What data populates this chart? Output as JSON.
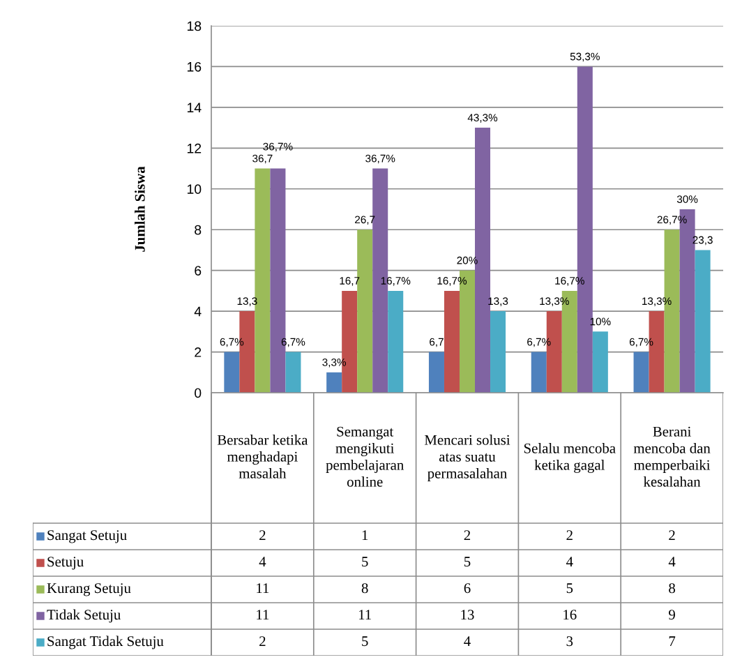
{
  "chart_data": {
    "type": "bar",
    "ylabel": "Jumlah Siswa",
    "categories": [
      "Bersabar ketika menghadapi masalah",
      "Semangat mengikuti pembelajaran online",
      "Mencari solusi atas suatu permasalahan",
      "Selalu mencoba ketika gagal",
      "Berani mencoba dan memperbaiki kesalahan"
    ],
    "series": [
      {
        "name": "Sangat Setuju",
        "color": "#4f81bd",
        "values": [
          2,
          1,
          2,
          2,
          2
        ]
      },
      {
        "name": "Setuju",
        "color": "#c0504d",
        "values": [
          4,
          5,
          5,
          4,
          4
        ]
      },
      {
        "name": "Kurang Setuju",
        "color": "#9bbb59",
        "values": [
          11,
          8,
          6,
          5,
          8
        ]
      },
      {
        "name": "Tidak Setuju",
        "color": "#8064a2",
        "values": [
          11,
          11,
          13,
          16,
          9
        ]
      },
      {
        "name": "Sangat Tidak Setuju",
        "color": "#4bacc6",
        "values": [
          2,
          5,
          4,
          3,
          7
        ]
      }
    ],
    "annotations": [
      "6,7%",
      "3,3%",
      "6,7",
      "6,7%",
      "6,7%",
      "13,3",
      "16,7",
      "16,7%",
      "13,3%",
      "13,3%",
      "36,7",
      "26,7",
      "20%",
      "16,7%",
      "26,7%",
      "36,7%",
      "36,7%",
      "43,3%",
      "53,3%",
      "30%",
      "6,7%",
      "16,7%",
      "13,3",
      "10%",
      "23,3"
    ],
    "ylim": [
      0,
      18
    ],
    "yticks": [
      0,
      2,
      4,
      6,
      8,
      10,
      12,
      14,
      16,
      18
    ],
    "grid": "y",
    "legend": "bottom",
    "data_labels": true
  }
}
